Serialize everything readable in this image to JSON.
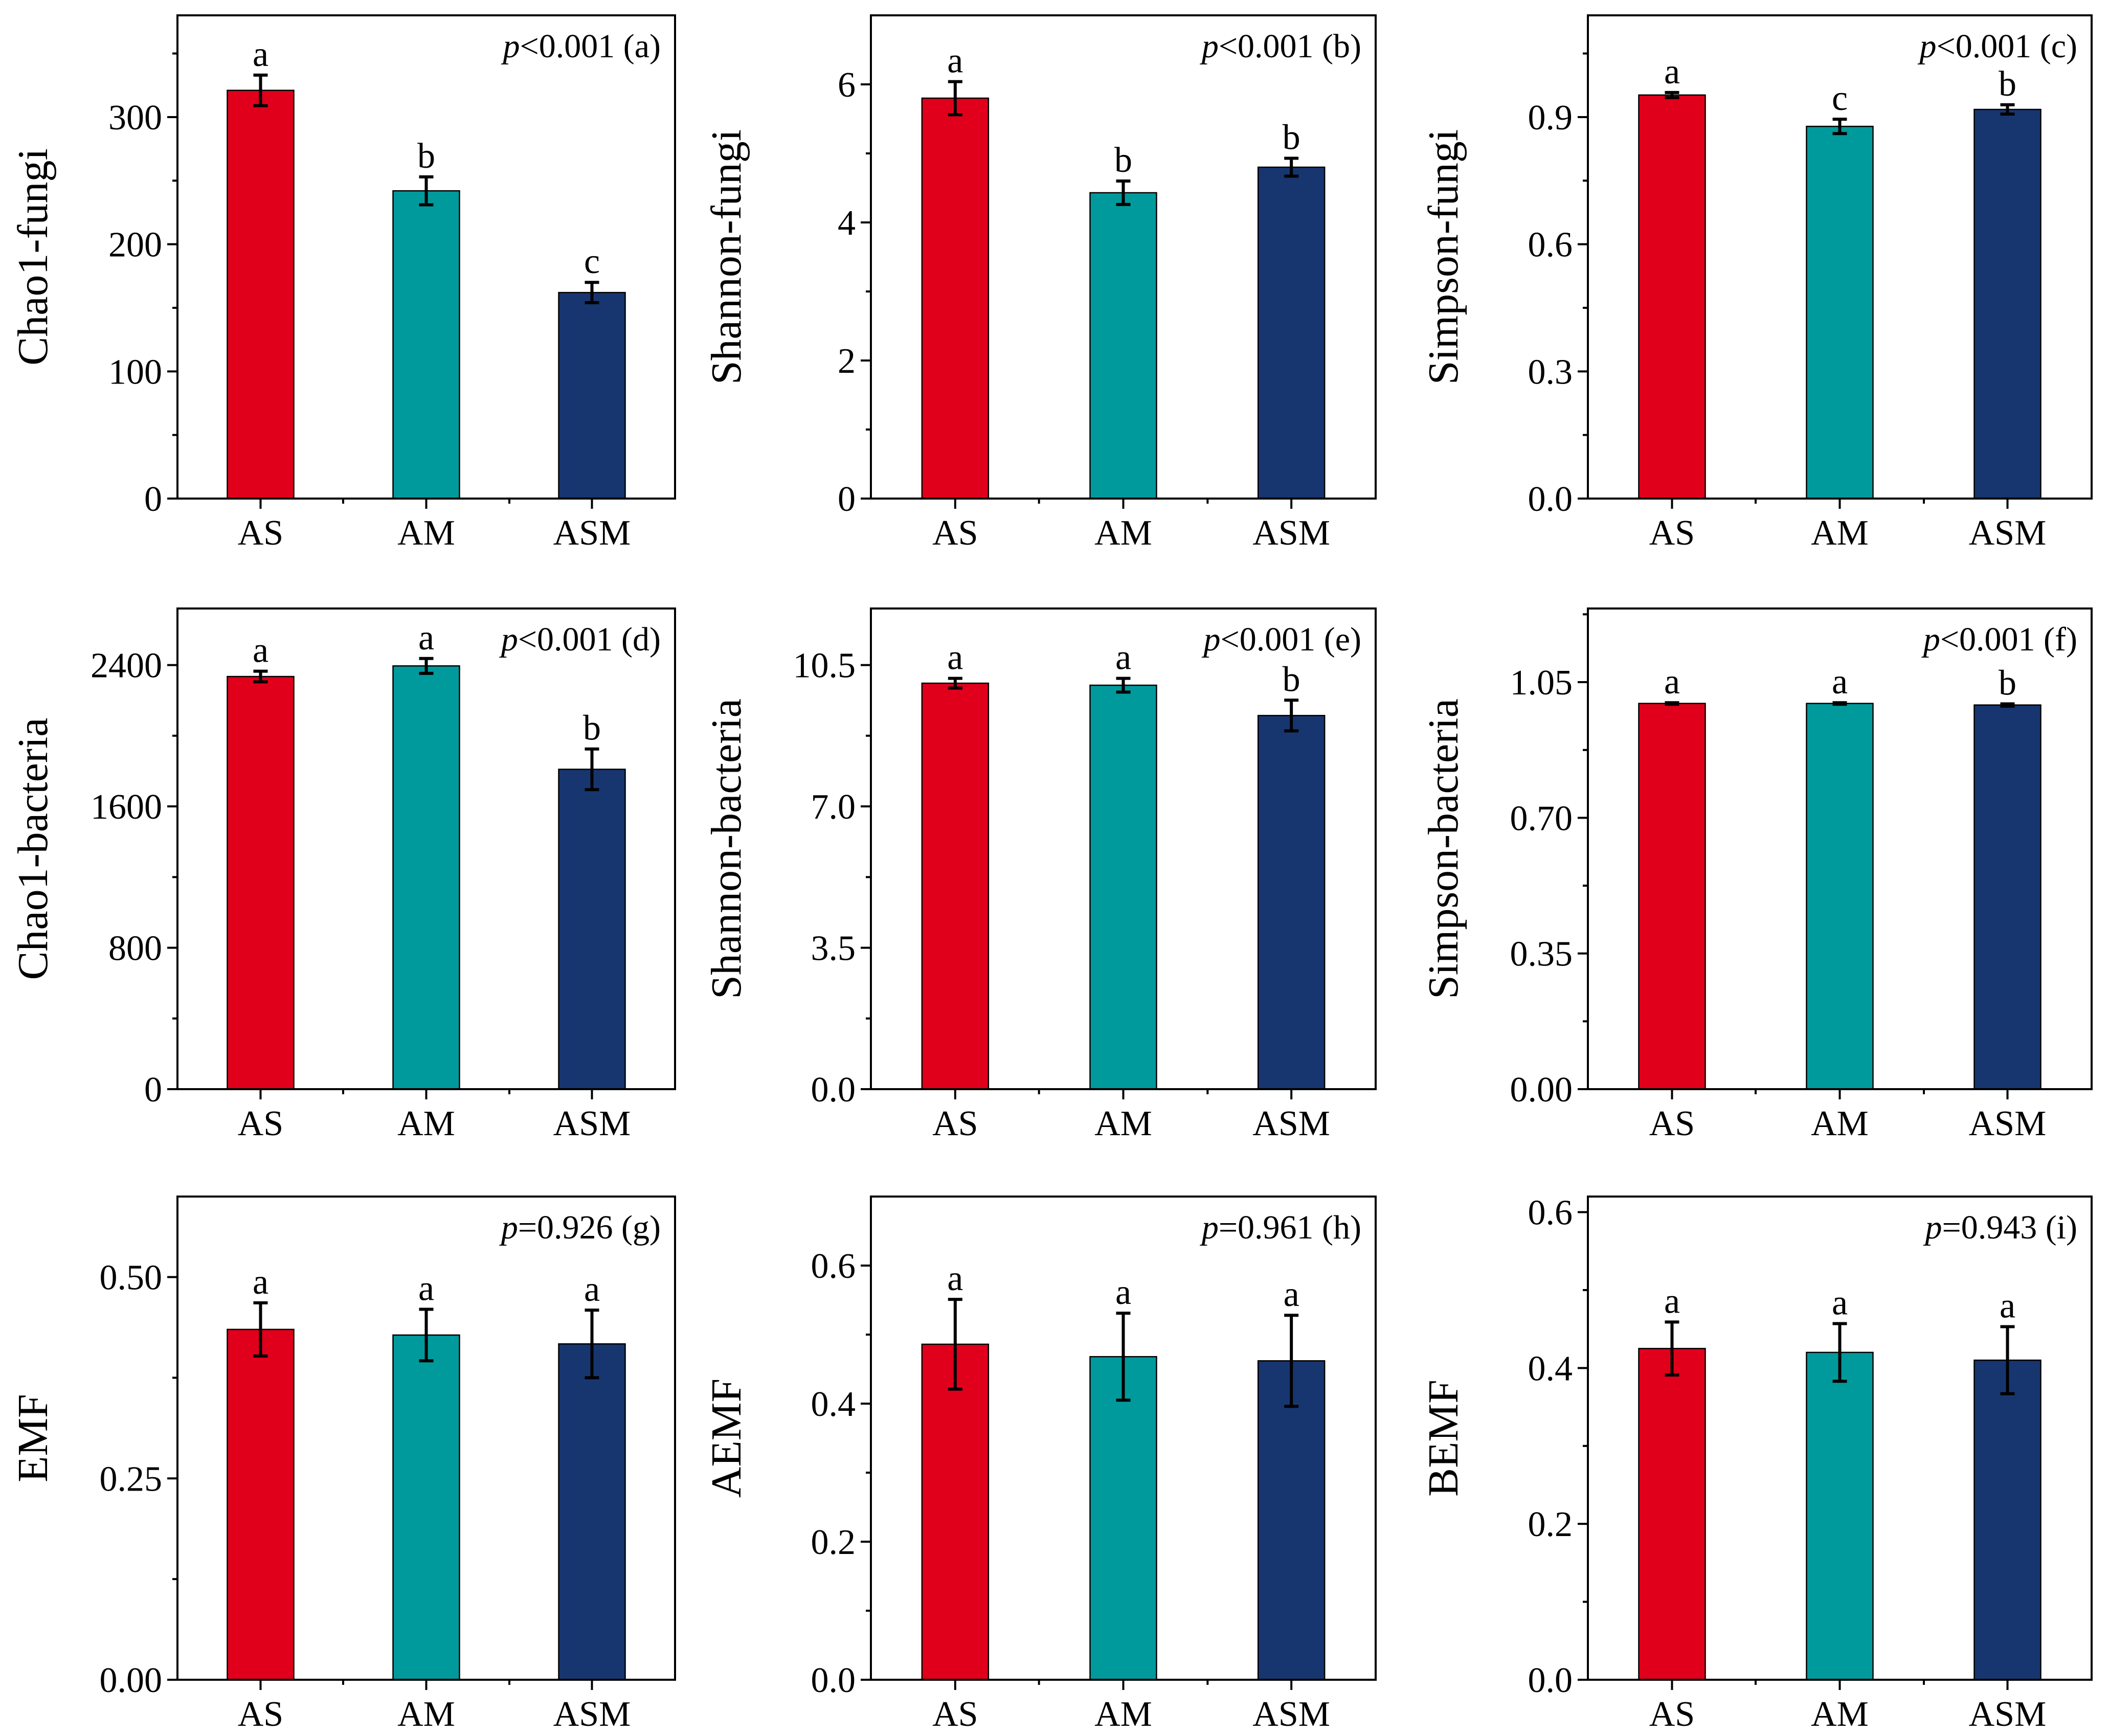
{
  "colors": {
    "AS": "#e0001b",
    "AM": "#009a9c",
    "ASM": "#173670"
  },
  "chart_data": [
    {
      "id": "a",
      "type": "bar",
      "title": "",
      "ylabel": "Chao1-fungi",
      "xlabel": "",
      "categories": [
        "AS",
        "AM",
        "ASM"
      ],
      "values": [
        321,
        242,
        162
      ],
      "errors": [
        12,
        11,
        8
      ],
      "letters": [
        "a",
        "b",
        "c"
      ],
      "ylim": [
        0,
        380
      ],
      "yticks": [
        0,
        100,
        200,
        300
      ],
      "ytick_labels": [
        "0",
        "100",
        "200",
        "300"
      ],
      "annotation": {
        "p_symbol": "p",
        "p_rest": "<0.001 (a)"
      }
    },
    {
      "id": "b",
      "type": "bar",
      "title": "",
      "ylabel": "Shannon-fungi",
      "xlabel": "",
      "categories": [
        "AS",
        "AM",
        "ASM"
      ],
      "values": [
        5.8,
        4.43,
        4.8
      ],
      "errors": [
        0.24,
        0.17,
        0.13
      ],
      "letters": [
        "a",
        "b",
        "b"
      ],
      "ylim": [
        0,
        7
      ],
      "yticks": [
        0,
        2,
        4,
        6
      ],
      "ytick_labels": [
        "0",
        "2",
        "4",
        "6"
      ],
      "annotation": {
        "p_symbol": "p",
        "p_rest": "<0.001 (b)"
      }
    },
    {
      "id": "c",
      "type": "bar",
      "title": "",
      "ylabel": "Simpson-fungi",
      "xlabel": "",
      "categories": [
        "AS",
        "AM",
        "ASM"
      ],
      "values": [
        0.952,
        0.878,
        0.918
      ],
      "errors": [
        0.006,
        0.017,
        0.011
      ],
      "letters": [
        "a",
        "c",
        "b"
      ],
      "ylim": [
        0,
        1.14
      ],
      "yticks": [
        0,
        0.3,
        0.6,
        0.9
      ],
      "ytick_labels": [
        "0.0",
        "0.3",
        "0.6",
        "0.9"
      ],
      "annotation": {
        "p_symbol": "p",
        "p_rest": "<0.001 (c)"
      }
    },
    {
      "id": "d",
      "type": "bar",
      "title": "",
      "ylabel": "Chao1-bacteria",
      "xlabel": "",
      "categories": [
        "AS",
        "AM",
        "ASM"
      ],
      "values": [
        2335,
        2395,
        1810
      ],
      "errors": [
        30,
        42,
        115
      ],
      "letters": [
        "a",
        "a",
        "b"
      ],
      "ylim": [
        0,
        2720
      ],
      "yticks": [
        0,
        800,
        1600,
        2400
      ],
      "ytick_labels": [
        "0",
        "800",
        "1600",
        "2400"
      ],
      "annotation": {
        "p_symbol": "p",
        "p_rest": "<0.001 (d)"
      }
    },
    {
      "id": "e",
      "type": "bar",
      "title": "",
      "ylabel": "Shannon-bacteria",
      "xlabel": "",
      "categories": [
        "AS",
        "AM",
        "ASM"
      ],
      "values": [
        10.05,
        10.0,
        9.25
      ],
      "errors": [
        0.12,
        0.17,
        0.38
      ],
      "letters": [
        "a",
        "a",
        "b"
      ],
      "ylim": [
        0,
        11.9
      ],
      "yticks": [
        0,
        3.5,
        7.0,
        10.5
      ],
      "ytick_labels": [
        "0.0",
        "3.5",
        "7.0",
        "10.5"
      ],
      "annotation": {
        "p_symbol": "p",
        "p_rest": "<0.001 (e)"
      }
    },
    {
      "id": "f",
      "type": "bar",
      "title": "",
      "ylabel": "Simpson-bacteria",
      "xlabel": "",
      "categories": [
        "AS",
        "AM",
        "ASM"
      ],
      "values": [
        0.995,
        0.995,
        0.991
      ],
      "errors": [
        0.002,
        0.002,
        0.003
      ],
      "letters": [
        "a",
        "a",
        "b"
      ],
      "ylim": [
        0,
        1.24
      ],
      "yticks": [
        0,
        0.35,
        0.7,
        1.05
      ],
      "ytick_labels": [
        "0.00",
        "0.35",
        "0.70",
        "1.05"
      ],
      "annotation": {
        "p_symbol": "p",
        "p_rest": "<0.001 (f)"
      }
    },
    {
      "id": "g",
      "type": "bar",
      "title": "",
      "ylabel": "EMF",
      "xlabel": "",
      "categories": [
        "AS",
        "AM",
        "ASM"
      ],
      "values": [
        0.435,
        0.428,
        0.417
      ],
      "errors": [
        0.033,
        0.032,
        0.042
      ],
      "letters": [
        "a",
        "a",
        "a"
      ],
      "ylim": [
        0,
        0.6
      ],
      "yticks": [
        0,
        0.25,
        0.5
      ],
      "ytick_labels": [
        "0.00",
        "0.25",
        "0.50"
      ],
      "annotation": {
        "p_symbol": "p",
        "p_rest": "=0.926 (g)"
      }
    },
    {
      "id": "h",
      "type": "bar",
      "title": "",
      "ylabel": "AEMF",
      "xlabel": "",
      "categories": [
        "AS",
        "AM",
        "ASM"
      ],
      "values": [
        0.486,
        0.468,
        0.462
      ],
      "errors": [
        0.065,
        0.063,
        0.066
      ],
      "letters": [
        "a",
        "a",
        "a"
      ],
      "ylim": [
        0,
        0.7
      ],
      "yticks": [
        0,
        0.2,
        0.4,
        0.6
      ],
      "ytick_labels": [
        "0.0",
        "0.2",
        "0.4",
        "0.6"
      ],
      "annotation": {
        "p_symbol": "p",
        "p_rest": "=0.961 (h)"
      }
    },
    {
      "id": "i",
      "type": "bar",
      "title": "",
      "ylabel": "BEMF",
      "xlabel": "",
      "categories": [
        "AS",
        "AM",
        "ASM"
      ],
      "values": [
        0.425,
        0.42,
        0.41
      ],
      "errors": [
        0.034,
        0.037,
        0.043
      ],
      "letters": [
        "a",
        "a",
        "a"
      ],
      "ylim": [
        0,
        0.62
      ],
      "yticks": [
        0,
        0.2,
        0.4,
        0.6
      ],
      "ytick_labels": [
        "0.0",
        "0.2",
        "0.4",
        "0.6"
      ],
      "annotation": {
        "p_symbol": "p",
        "p_rest": "=0.943 (i)"
      }
    }
  ]
}
